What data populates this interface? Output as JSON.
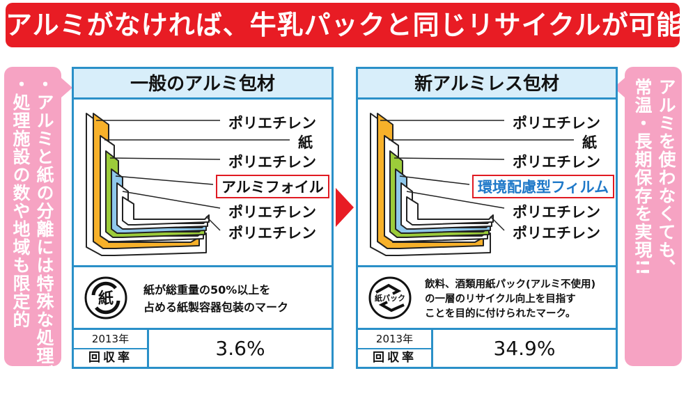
{
  "banner": {
    "title": "アルミがなければ、牛乳パックと同じリサイクルが可能に!!"
  },
  "left_note": {
    "line1": "・アルミと紙の分離には特殊な処理が必要",
    "line2": "・処理施設の数や地域も限定的"
  },
  "right_note": {
    "line1": "アルミを使わなくても、",
    "line2": "常温・長期保存を実現!!"
  },
  "panel_left": {
    "title": "一般のアルミ包材",
    "layers": [
      "ポリエチレン",
      "紙",
      "ポリエチレン",
      "アルミフォイル",
      "ポリエチレン",
      "ポリエチレン"
    ],
    "mark_icon_text": "紙",
    "mark_line1": "紙が総重量の50%以上を",
    "mark_line2": "占める紙製容器包装のマーク",
    "year": "2013年",
    "rate_label": "回収率",
    "rate_value": "3.6%"
  },
  "panel_right": {
    "title": "新アルミレス包材",
    "layers": [
      "ポリエチレン",
      "紙",
      "ポリエチレン",
      "環境配慮型フィルム",
      "ポリエチレン",
      "ポリエチレン"
    ],
    "mark_icon_text": "紙パック",
    "mark_line1": "飲料、酒類用紙パック(アルミ不使用)",
    "mark_line2": "の一層のリサイクル向上を目指す",
    "mark_line3": "ことを目的に付けられたマーク。",
    "year": "2013年",
    "rate_label": "回収率",
    "rate_value": "34.9%"
  },
  "colors": {
    "accent_red": "#e81c24",
    "panel_blue": "#2a90c8",
    "pink": "#f6a3c3",
    "paper_orange": "#f7b12a",
    "green_layer": "#9ccc3a",
    "blue_layer": "#8fc8ec"
  }
}
